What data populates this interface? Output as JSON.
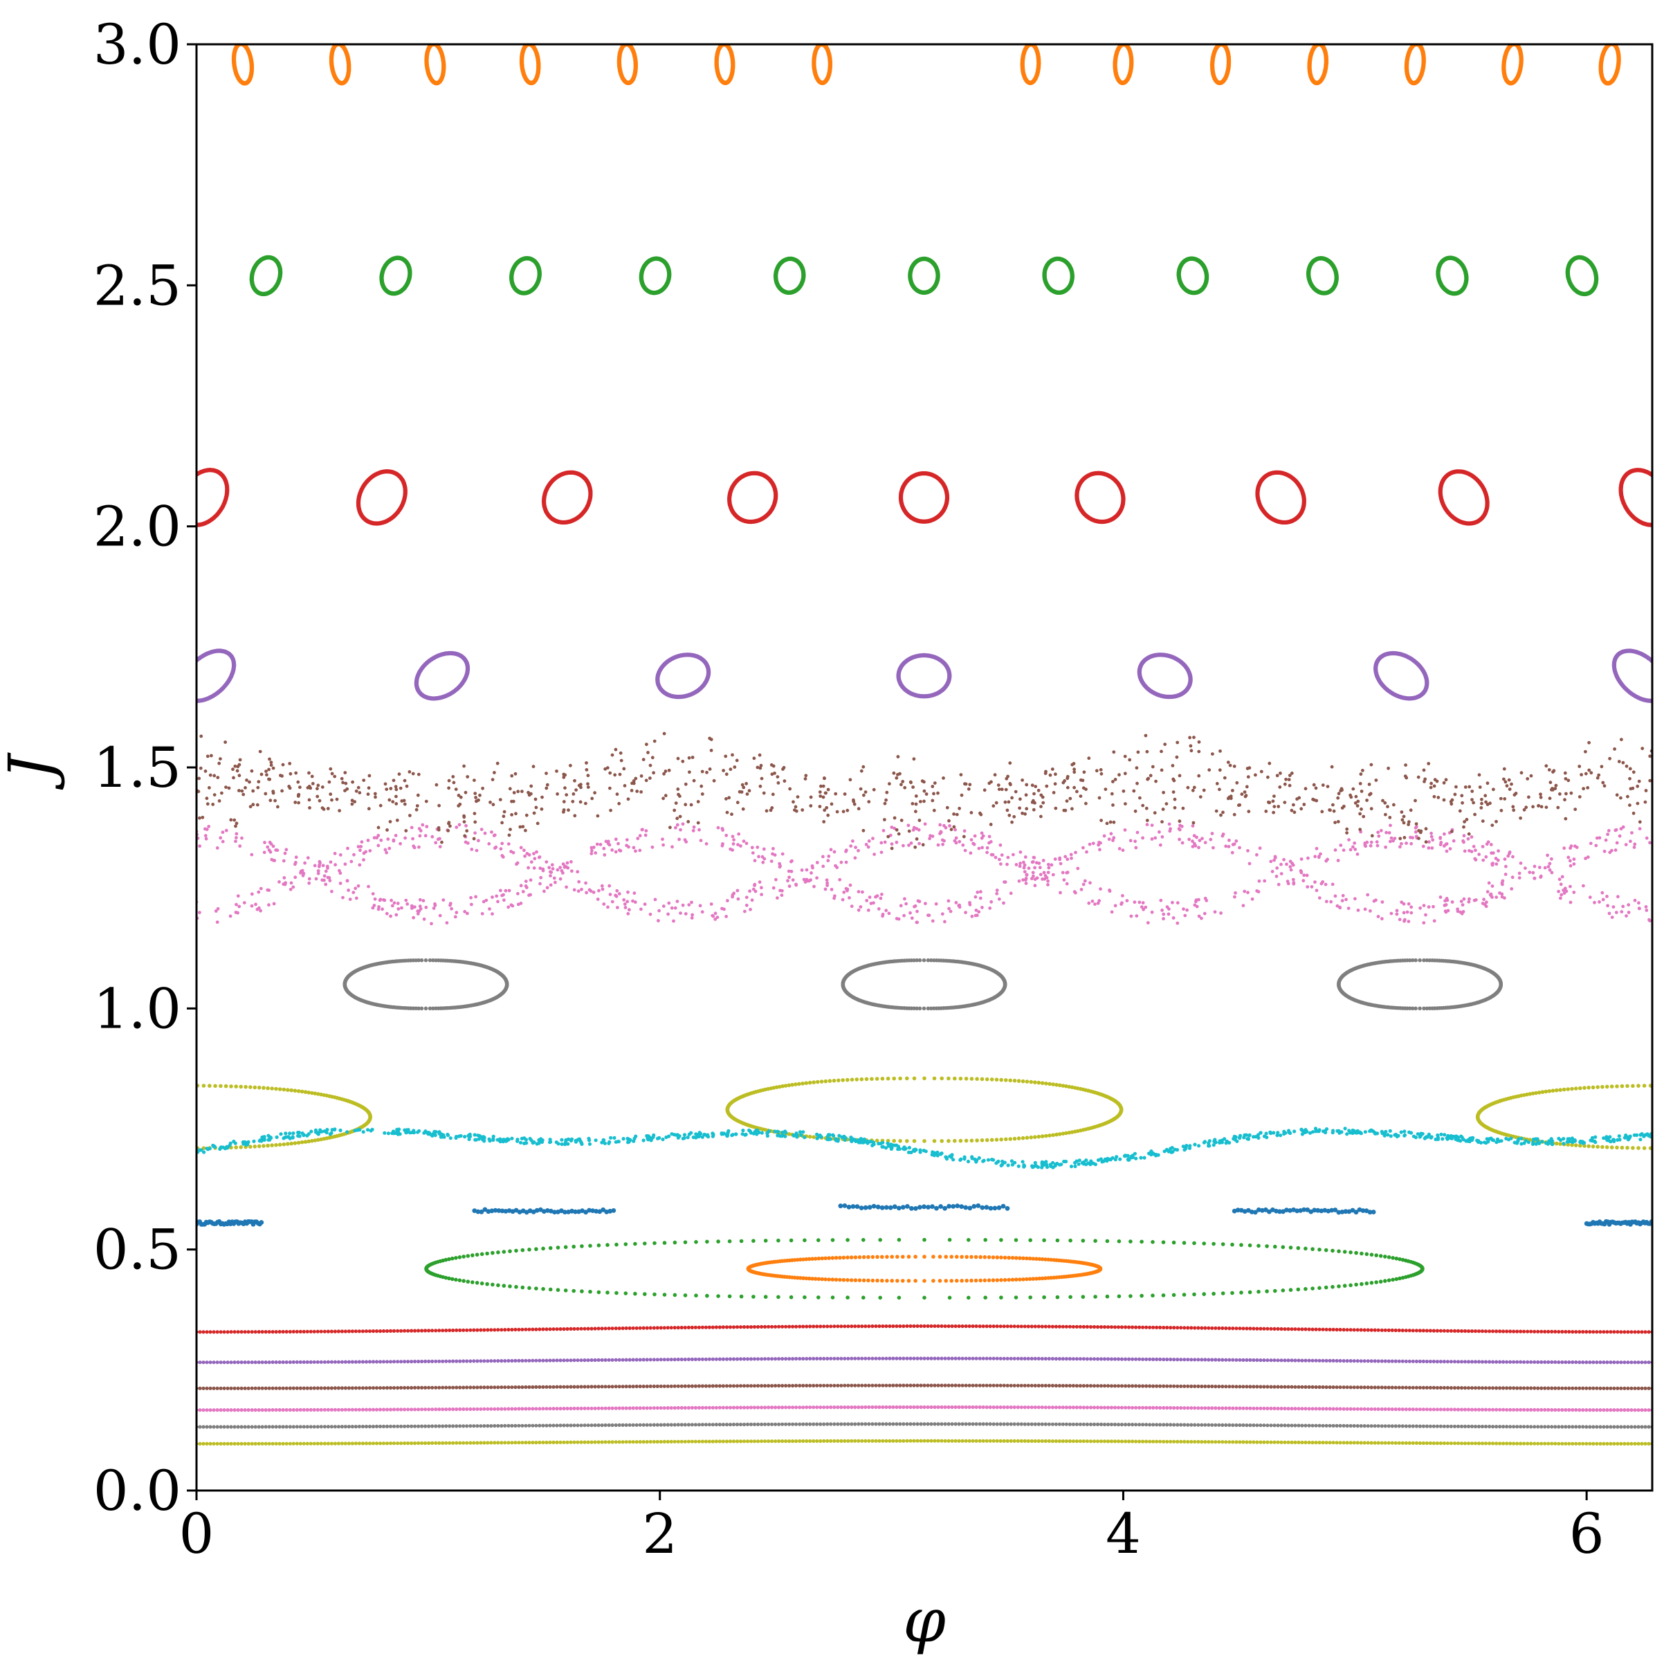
{
  "chart_data": {
    "type": "scatter",
    "title": "",
    "xlabel": "φ",
    "ylabel": "J",
    "xlim": [
      0,
      6.2832
    ],
    "ylim": [
      0,
      3
    ],
    "xticks": [
      0,
      2,
      4,
      6
    ],
    "yticks": [
      0.0,
      0.5,
      1.0,
      1.5,
      2.0,
      2.5,
      3.0
    ],
    "xtick_labels": [
      "0",
      "2",
      "4",
      "6"
    ],
    "ytick_labels": [
      "0.0",
      "0.5",
      "1.0",
      "1.5",
      "2.0",
      "2.5",
      "3.0"
    ],
    "grid": false,
    "legend": "none",
    "colors": {
      "blue": "#1f77b4",
      "orange": "#ff7f0e",
      "green": "#2ca02c",
      "red": "#d62728",
      "purple": "#9467bd",
      "brown": "#8c564b",
      "pink": "#e377c2",
      "gray": "#7f7f7f",
      "olive": "#bcbd22",
      "cyan": "#17becf"
    },
    "lines": [
      {
        "color": "olive",
        "J": 0.1,
        "amp": 0.003
      },
      {
        "color": "gray",
        "J": 0.135,
        "amp": 0.003
      },
      {
        "color": "pink",
        "J": 0.17,
        "amp": 0.003
      },
      {
        "color": "brown",
        "J": 0.215,
        "amp": 0.003
      },
      {
        "color": "purple",
        "J": 0.27,
        "amp": 0.004
      },
      {
        "color": "red",
        "J": 0.335,
        "amp": 0.006
      }
    ],
    "islands": [
      {
        "color": "orange",
        "cx": [
          3.1416
        ],
        "J": 0.46,
        "a": 0.76,
        "b": 0.025
      },
      {
        "color": "green",
        "cx": [
          3.1416
        ],
        "J": 0.46,
        "a": 2.15,
        "b": 0.06
      },
      {
        "color": "gray",
        "cx": [
          0.99,
          3.14,
          5.28
        ],
        "J": 1.05,
        "a": 0.35,
        "b": 0.05
      },
      {
        "color": "olive",
        "cx": [
          3.1416
        ],
        "J": 0.79,
        "a": 0.85,
        "b": 0.065
      },
      {
        "color": "olive",
        "cx": [
          -0.1,
          6.38
        ],
        "J": 0.775,
        "a": 0.85,
        "b": 0.065
      }
    ],
    "small_islands": [
      {
        "color": "purple",
        "J": 1.69,
        "w": 0.22,
        "h": 0.085,
        "cx": [
          0.05,
          1.06,
          2.1,
          3.14,
          4.18,
          5.2,
          6.23
        ]
      },
      {
        "color": "red",
        "J": 2.06,
        "w": 0.2,
        "h": 0.1,
        "cx": [
          0.03,
          0.8,
          1.6,
          2.4,
          3.14,
          3.9,
          4.68,
          5.47,
          6.25
        ]
      },
      {
        "color": "green",
        "J": 2.52,
        "w": 0.12,
        "h": 0.07,
        "cx": [
          0.3,
          0.86,
          1.42,
          1.98,
          2.56,
          3.14,
          3.72,
          4.3,
          4.86,
          5.42,
          5.98
        ]
      },
      {
        "color": "orange",
        "J": 2.96,
        "w": 0.07,
        "h": 0.08,
        "cx": [
          0.2,
          0.62,
          1.03,
          1.44,
          1.86,
          2.28,
          2.7,
          3.6,
          4.0,
          4.42,
          4.84,
          5.26,
          5.68,
          6.1
        ]
      }
    ],
    "blue_segments": [
      {
        "x": [
          0.0,
          0.28
        ],
        "J": 0.555
      },
      {
        "x": [
          1.2,
          1.8
        ],
        "J": 0.58
      },
      {
        "x": [
          2.78,
          3.5
        ],
        "J": 0.588
      },
      {
        "x": [
          4.48,
          5.08
        ],
        "J": 0.58
      },
      {
        "x": [
          6.0,
          6.28
        ],
        "J": 0.555
      }
    ],
    "cyan_band": {
      "J_mid": 0.72,
      "amp": 0.04
    },
    "pink_band": {
      "J_mid": 1.28,
      "amp": 0.08
    },
    "brown_band": {
      "J_mid": 1.45,
      "amp": 0.12
    }
  }
}
